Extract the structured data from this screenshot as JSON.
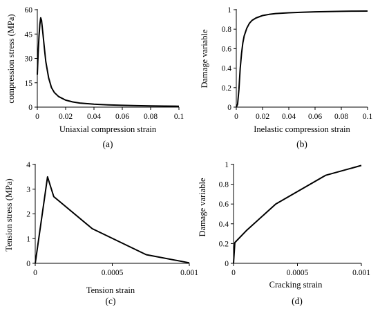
{
  "chart_data": [
    {
      "type": "line",
      "caption": "(a)",
      "xlabel": "Uniaxial compression strain",
      "ylabel": "compression stress (MPa)",
      "xlim": [
        0,
        0.1
      ],
      "ylim": [
        0,
        60
      ],
      "xticks": [
        "0",
        "0.02",
        "0.04",
        "0.06",
        "0.08",
        "0.1"
      ],
      "yticks": [
        "0",
        "15",
        "30",
        "45",
        "60"
      ],
      "grid": false,
      "series": [
        {
          "x": [
            0,
            0.0006,
            0.0012,
            0.0018,
            0.0024,
            0.003,
            0.004,
            0.005,
            0.006,
            0.008,
            0.01,
            0.012,
            0.015,
            0.02,
            0.025,
            0.03,
            0.04,
            0.05,
            0.06,
            0.07,
            0.08,
            0.09,
            0.1
          ],
          "y": [
            20,
            33,
            44,
            51,
            55,
            53.5,
            45,
            36,
            28,
            18,
            12,
            9,
            6.5,
            4.3,
            3.2,
            2.5,
            1.8,
            1.35,
            1.1,
            0.9,
            0.75,
            0.65,
            0.55
          ]
        }
      ]
    },
    {
      "type": "line",
      "caption": "(b)",
      "xlabel": "Inelastic compression strain",
      "ylabel": "Damage variable",
      "xlim": [
        0,
        0.1
      ],
      "ylim": [
        0,
        1
      ],
      "xticks": [
        "0",
        "0.02",
        "0.04",
        "0.06",
        "0.08",
        "0.1"
      ],
      "yticks": [
        "0",
        "0.2",
        "0.4",
        "0.6",
        "0.8",
        "1"
      ],
      "grid": false,
      "series": [
        {
          "x": [
            0,
            0.001,
            0.002,
            0.003,
            0.004,
            0.005,
            0.006,
            0.008,
            0.01,
            0.012,
            0.015,
            0.02,
            0.025,
            0.03,
            0.04,
            0.05,
            0.06,
            0.07,
            0.08,
            0.09,
            0.1
          ],
          "y": [
            0,
            0.03,
            0.18,
            0.4,
            0.55,
            0.66,
            0.73,
            0.81,
            0.86,
            0.89,
            0.915,
            0.94,
            0.952,
            0.96,
            0.968,
            0.974,
            0.978,
            0.981,
            0.983,
            0.985,
            0.986
          ]
        }
      ]
    },
    {
      "type": "line",
      "caption": "(c)",
      "xlabel": "Tension strain",
      "ylabel": "Tension stress (MPa)",
      "xlim": [
        0,
        0.001
      ],
      "ylim": [
        0,
        4
      ],
      "xticks": [
        "0",
        "0.0005",
        "0.001"
      ],
      "yticks": [
        "0",
        "1",
        "2",
        "3",
        "4"
      ],
      "grid": false,
      "series": [
        {
          "x": [
            0,
            8e-05,
            0.00012,
            0.00037,
            0.00072,
            0.001
          ],
          "y": [
            0,
            3.5,
            2.7,
            1.4,
            0.35,
            0.02
          ]
        }
      ]
    },
    {
      "type": "line",
      "caption": "(d)",
      "xlabel": "Cracking strain",
      "ylabel": "Damage variable",
      "xlim": [
        0,
        0.001
      ],
      "ylim": [
        0,
        1
      ],
      "xticks": [
        "0",
        "0.0005",
        "0.001"
      ],
      "yticks": [
        "0",
        "0.2",
        "0.4",
        "0.6",
        "0.8",
        "1"
      ],
      "grid": false,
      "series": [
        {
          "x": [
            0,
            1e-05,
            0.0001,
            0.00033,
            0.00072,
            0.001
          ],
          "y": [
            0,
            0.21,
            0.33,
            0.6,
            0.89,
            0.99
          ]
        }
      ]
    }
  ]
}
